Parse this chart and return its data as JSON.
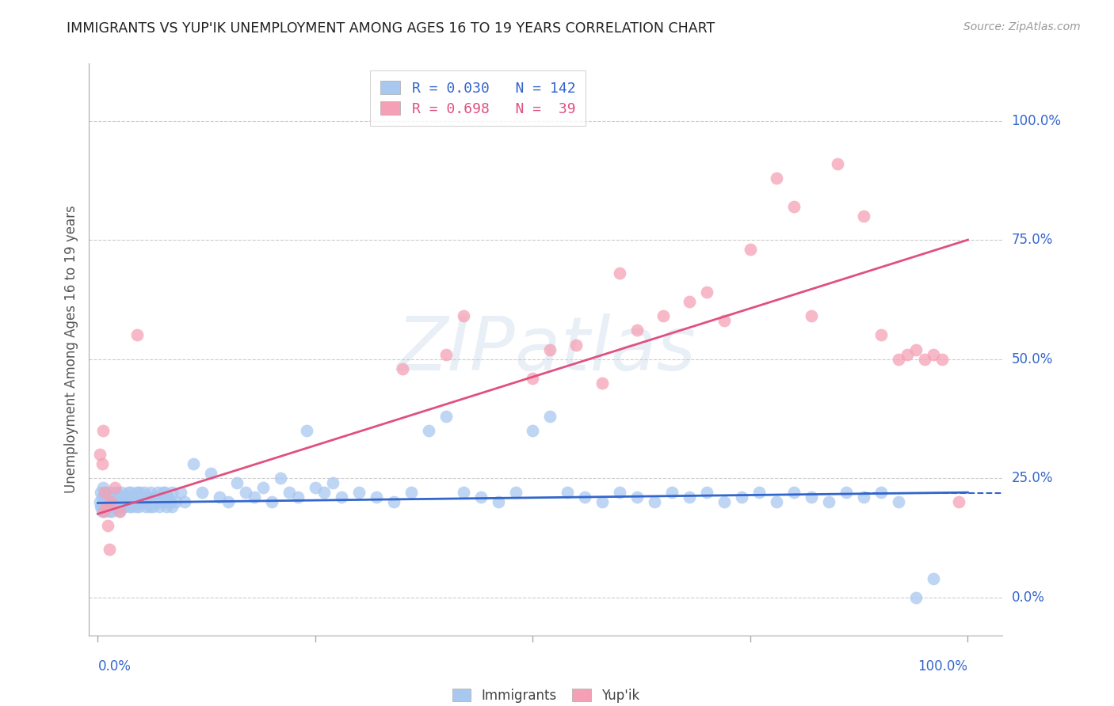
{
  "title": "IMMIGRANTS VS YUP'IK UNEMPLOYMENT AMONG AGES 16 TO 19 YEARS CORRELATION CHART",
  "source": "Source: ZipAtlas.com",
  "ylabel": "Unemployment Among Ages 16 to 19 years",
  "watermark_zip": "ZIP",
  "watermark_atlas": "atlas",
  "xlim": [
    0.0,
    1.0
  ],
  "ytick_labels": [
    "0.0%",
    "25.0%",
    "50.0%",
    "75.0%",
    "100.0%"
  ],
  "ytick_positions": [
    0.0,
    0.25,
    0.5,
    0.75,
    1.0
  ],
  "grid_color": "#cccccc",
  "immigrants_color": "#a8c8f0",
  "yupik_color": "#f5a0b5",
  "immigrants_line_color": "#3366cc",
  "yupik_line_color": "#e05080",
  "immigrants_line_intercept": 0.198,
  "immigrants_line_slope": 0.022,
  "yupik_line_intercept": 0.175,
  "yupik_line_slope": 0.575,
  "title_color": "#222222",
  "axis_label_color": "#555555",
  "ytick_color": "#3366cc",
  "background_color": "#ffffff",
  "immigrants_x": [
    0.002,
    0.003,
    0.004,
    0.005,
    0.006,
    0.007,
    0.008,
    0.009,
    0.01,
    0.012,
    0.013,
    0.014,
    0.015,
    0.016,
    0.017,
    0.018,
    0.019,
    0.02,
    0.021,
    0.022,
    0.023,
    0.024,
    0.025,
    0.026,
    0.027,
    0.028,
    0.029,
    0.03,
    0.032,
    0.034,
    0.036,
    0.038,
    0.04,
    0.042,
    0.044,
    0.046,
    0.048,
    0.05,
    0.055,
    0.06,
    0.065,
    0.07,
    0.075,
    0.08,
    0.085,
    0.09,
    0.095,
    0.1,
    0.11,
    0.12,
    0.13,
    0.14,
    0.15,
    0.16,
    0.17,
    0.18,
    0.19,
    0.2,
    0.21,
    0.22,
    0.23,
    0.24,
    0.25,
    0.26,
    0.27,
    0.28,
    0.3,
    0.32,
    0.34,
    0.36,
    0.38,
    0.4,
    0.42,
    0.44,
    0.46,
    0.48,
    0.5,
    0.52,
    0.54,
    0.56,
    0.58,
    0.6,
    0.62,
    0.64,
    0.66,
    0.68,
    0.7,
    0.72,
    0.74,
    0.76,
    0.78,
    0.8,
    0.82,
    0.84,
    0.86,
    0.88,
    0.9,
    0.92,
    0.94,
    0.96,
    0.003,
    0.005,
    0.007,
    0.009,
    0.011,
    0.013,
    0.015,
    0.017,
    0.019,
    0.021,
    0.023,
    0.025,
    0.027,
    0.029,
    0.031,
    0.033,
    0.035,
    0.037,
    0.039,
    0.041,
    0.043,
    0.045,
    0.047,
    0.049,
    0.051,
    0.053,
    0.055,
    0.057,
    0.059,
    0.061,
    0.063,
    0.065,
    0.067,
    0.069,
    0.071,
    0.073,
    0.075,
    0.077,
    0.079,
    0.081,
    0.083,
    0.085
  ],
  "immigrants_y": [
    0.2,
    0.22,
    0.19,
    0.21,
    0.23,
    0.18,
    0.2,
    0.22,
    0.21,
    0.2,
    0.19,
    0.22,
    0.21,
    0.18,
    0.2,
    0.21,
    0.19,
    0.2,
    0.22,
    0.21,
    0.2,
    0.19,
    0.21,
    0.2,
    0.22,
    0.19,
    0.21,
    0.2,
    0.21,
    0.2,
    0.19,
    0.22,
    0.2,
    0.21,
    0.19,
    0.2,
    0.22,
    0.21,
    0.2,
    0.19,
    0.21,
    0.2,
    0.22,
    0.21,
    0.19,
    0.2,
    0.22,
    0.2,
    0.28,
    0.22,
    0.26,
    0.21,
    0.2,
    0.24,
    0.22,
    0.21,
    0.23,
    0.2,
    0.25,
    0.22,
    0.21,
    0.35,
    0.23,
    0.22,
    0.24,
    0.21,
    0.22,
    0.21,
    0.2,
    0.22,
    0.35,
    0.38,
    0.22,
    0.21,
    0.2,
    0.22,
    0.35,
    0.38,
    0.22,
    0.21,
    0.2,
    0.22,
    0.21,
    0.2,
    0.22,
    0.21,
    0.22,
    0.2,
    0.21,
    0.22,
    0.2,
    0.22,
    0.21,
    0.2,
    0.22,
    0.21,
    0.22,
    0.2,
    0.0,
    0.04,
    0.19,
    0.18,
    0.21,
    0.2,
    0.19,
    0.18,
    0.2,
    0.19,
    0.21,
    0.19,
    0.2,
    0.18,
    0.21,
    0.2,
    0.19,
    0.21,
    0.22,
    0.2,
    0.19,
    0.21,
    0.2,
    0.22,
    0.19,
    0.21,
    0.2,
    0.22,
    0.19,
    0.21,
    0.2,
    0.22,
    0.19,
    0.21,
    0.2,
    0.22,
    0.19,
    0.21,
    0.2,
    0.22,
    0.19,
    0.21,
    0.2,
    0.22
  ],
  "yupik_x": [
    0.002,
    0.005,
    0.006,
    0.007,
    0.008,
    0.01,
    0.011,
    0.013,
    0.015,
    0.02,
    0.025,
    0.045,
    0.35,
    0.4,
    0.42,
    0.5,
    0.52,
    0.55,
    0.58,
    0.6,
    0.62,
    0.65,
    0.68,
    0.7,
    0.72,
    0.75,
    0.78,
    0.8,
    0.82,
    0.85,
    0.88,
    0.9,
    0.92,
    0.93,
    0.94,
    0.95,
    0.96,
    0.97,
    0.99
  ],
  "yupik_y": [
    0.3,
    0.28,
    0.35,
    0.18,
    0.22,
    0.19,
    0.15,
    0.1,
    0.2,
    0.23,
    0.18,
    0.55,
    0.48,
    0.51,
    0.59,
    0.46,
    0.52,
    0.53,
    0.45,
    0.68,
    0.56,
    0.59,
    0.62,
    0.64,
    0.58,
    0.73,
    0.88,
    0.82,
    0.59,
    0.91,
    0.8,
    0.55,
    0.5,
    0.51,
    0.52,
    0.5,
    0.51,
    0.5,
    0.2
  ]
}
